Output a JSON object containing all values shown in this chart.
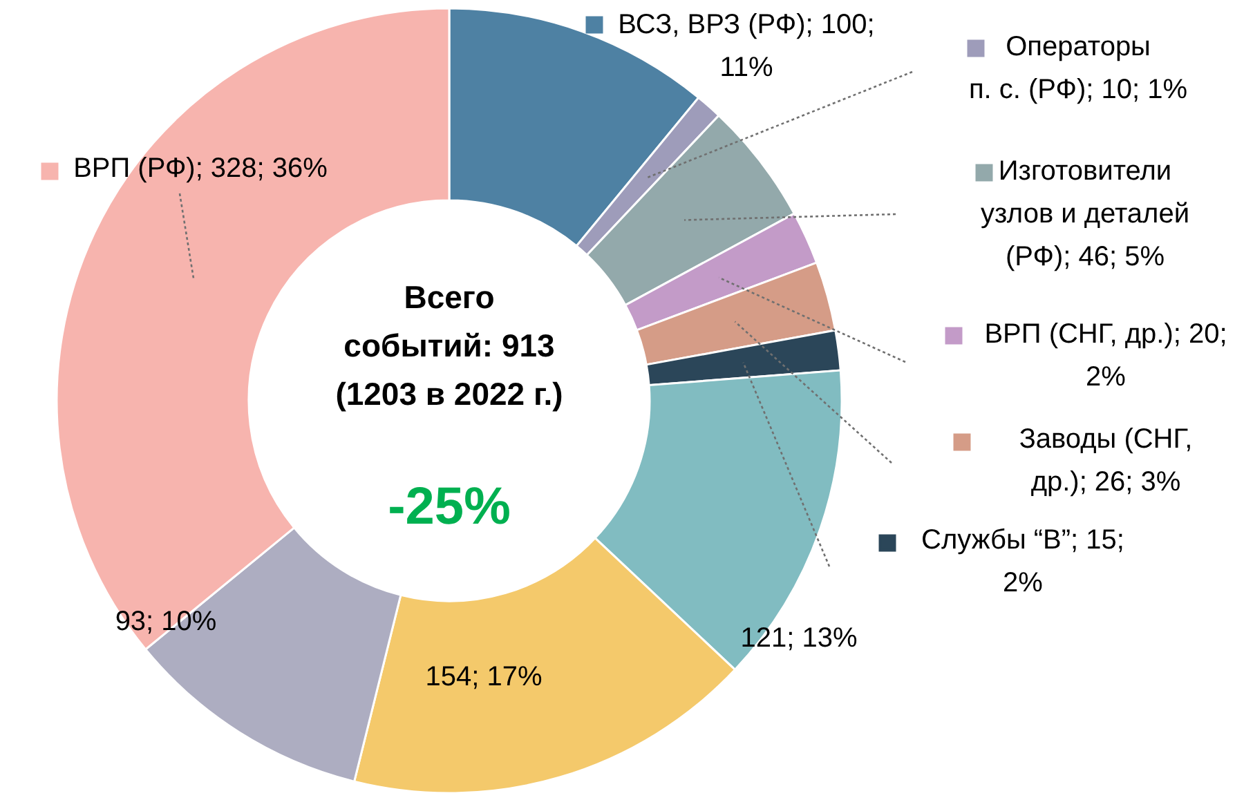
{
  "chart_data": {
    "type": "donut",
    "categories": [
      "ВСЗ, ВРЗ (РФ)",
      "Операторы п. с. (РФ)",
      "Изготовители узлов и деталей (РФ)",
      "ВРП (СНГ, др.)",
      "Заводы (СНГ, др.)",
      "Службы “В”",
      null,
      null,
      null,
      "ВРП (РФ)"
    ],
    "values": [
      100,
      10,
      46,
      20,
      26,
      15,
      121,
      154,
      93,
      328
    ],
    "value_labels": [
      "100; 11%",
      "10; 1%",
      "46; 5%",
      "20; 2%",
      "26; 3%",
      "15; 2%",
      "121; 13%",
      "154; 17%",
      "93; 10%",
      "328; 36%"
    ],
    "colors": [
      "#4e81a3",
      "#9e9cba",
      "#93a9ab",
      "#c39bc8",
      "#d59c87",
      "#2b4659",
      "#81bcc1",
      "#f4c96b",
      "#adadc1",
      "#f7b4ae"
    ],
    "annotations": [
      "Всего событий: 913 (1203 в 2022 г.)",
      "-25%"
    ],
    "legend": "right"
  }
}
